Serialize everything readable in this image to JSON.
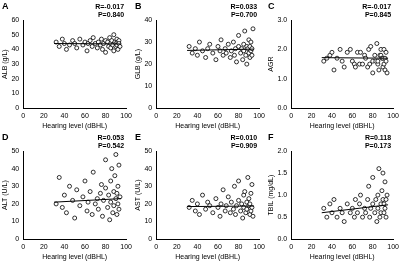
{
  "chart_data": [
    {
      "type": "scatter",
      "title": "A",
      "annotations": [
        "R=-0.017",
        "P=0.840"
      ],
      "x_label": "Hearing level (dBHL)",
      "y_label": "ALB (g/L)",
      "xlim": [
        0,
        100
      ],
      "xticks": [
        0,
        20,
        40,
        60,
        80,
        100
      ],
      "ylim": [
        0,
        60
      ],
      "yticks": [
        0,
        10,
        20,
        30,
        40,
        50,
        60
      ],
      "grid": false,
      "series": [
        {
          "type": "scatter",
          "marker": "circle",
          "color": "#000000",
          "x": [
            32,
            35,
            38,
            40,
            42,
            45,
            48,
            50,
            52,
            55,
            58,
            60,
            62,
            63,
            65,
            67,
            68,
            70,
            72,
            73,
            75,
            76,
            77,
            78,
            80,
            80,
            82,
            83,
            84,
            85,
            85,
            86,
            87,
            88,
            88,
            89,
            90,
            90,
            91,
            91,
            92,
            92,
            93,
            93,
            94
          ],
          "values": [
            45,
            42,
            47,
            44,
            40,
            43,
            46,
            44,
            41,
            47,
            43,
            45,
            39,
            44,
            46,
            42,
            48,
            44,
            41,
            45,
            43,
            47,
            40,
            44,
            46,
            38,
            45,
            42,
            48,
            44,
            41,
            46,
            43,
            50,
            39,
            45,
            44,
            42,
            47,
            43,
            45,
            40,
            46,
            44,
            42
          ]
        },
        {
          "type": "line",
          "line_style": "solid",
          "color": "#000000",
          "x": [
            30,
            95
          ],
          "values": [
            44.0,
            43.7
          ]
        }
      ]
    },
    {
      "type": "scatter",
      "title": "B",
      "annotations": [
        "R=0.033",
        "P=0.700"
      ],
      "x_label": "Hearing level (dBHL)",
      "y_label": "GLB (g/L)",
      "xlim": [
        0,
        100
      ],
      "xticks": [
        0,
        20,
        40,
        60,
        80,
        100
      ],
      "ylim": [
        0,
        40
      ],
      "yticks": [
        0,
        10,
        20,
        30,
        40
      ],
      "grid": false,
      "series": [
        {
          "type": "scatter",
          "marker": "circle",
          "color": "#000000",
          "x": [
            32,
            35,
            38,
            40,
            42,
            45,
            48,
            50,
            52,
            55,
            58,
            60,
            62,
            63,
            65,
            67,
            68,
            70,
            72,
            73,
            75,
            76,
            77,
            78,
            80,
            80,
            82,
            83,
            84,
            85,
            85,
            86,
            87,
            88,
            88,
            89,
            90,
            90,
            91,
            91,
            92,
            92,
            93,
            93,
            94
          ],
          "values": [
            28,
            25,
            27,
            24,
            30,
            26,
            23,
            27,
            29,
            25,
            22,
            28,
            26,
            31,
            24,
            27,
            25,
            29,
            23,
            26,
            30,
            24,
            27,
            21,
            28,
            33,
            25,
            27,
            22,
            29,
            26,
            35,
            24,
            28,
            20,
            27,
            31,
            25,
            23,
            28,
            26,
            30,
            24,
            27,
            36
          ]
        },
        {
          "type": "line",
          "line_style": "solid",
          "color": "#000000",
          "x": [
            30,
            95
          ],
          "values": [
            26.2,
            26.8
          ]
        }
      ]
    },
    {
      "type": "scatter",
      "title": "C",
      "annotations": [
        "R=-0.017",
        "P=0.845"
      ],
      "x_label": "Hearing level (dBHL)",
      "y_label": "AGR",
      "xlim": [
        0,
        100
      ],
      "xticks": [
        0,
        20,
        40,
        60,
        80,
        100
      ],
      "ylim": [
        0,
        3
      ],
      "yticks": [
        {
          "value": 0,
          "label": "0.0"
        },
        {
          "value": 1,
          "label": "1.0"
        },
        {
          "value": 2,
          "label": "2.0"
        },
        {
          "value": 3,
          "label": "3.0"
        }
      ],
      "grid": false,
      "series": [
        {
          "type": "scatter",
          "marker": "circle",
          "color": "#000000",
          "x": [
            32,
            35,
            38,
            40,
            42,
            45,
            48,
            50,
            52,
            55,
            58,
            60,
            62,
            63,
            65,
            67,
            68,
            70,
            72,
            73,
            75,
            76,
            77,
            78,
            80,
            80,
            82,
            83,
            84,
            85,
            85,
            86,
            87,
            88,
            88,
            89,
            90,
            90,
            91,
            91,
            92,
            92,
            93,
            93,
            94
          ],
          "values": [
            1.6,
            1.7,
            1.8,
            1.9,
            1.3,
            1.7,
            2.0,
            1.6,
            1.4,
            1.9,
            2.0,
            1.6,
            1.5,
            1.4,
            1.9,
            1.5,
            1.9,
            1.5,
            1.8,
            1.7,
            1.4,
            2.0,
            1.5,
            2.1,
            1.6,
            1.2,
            1.8,
            1.6,
            2.2,
            1.5,
            1.6,
            1.3,
            1.8,
            1.8,
            2.0,
            1.7,
            1.4,
            1.7,
            2.0,
            1.5,
            1.7,
            1.3,
            1.9,
            1.6,
            1.2
          ]
        },
        {
          "type": "line",
          "line_style": "solid",
          "color": "#000000",
          "x": [
            30,
            95
          ],
          "values": [
            1.72,
            1.7
          ]
        }
      ]
    },
    {
      "type": "scatter",
      "title": "D",
      "annotations": [
        "R=0.053",
        "P=0.542"
      ],
      "x_label": "Hearing level (dBHL)",
      "y_label": "ALT (U/L)",
      "xlim": [
        0,
        100
      ],
      "xticks": [
        0,
        20,
        40,
        60,
        80,
        100
      ],
      "ylim": [
        0,
        50
      ],
      "yticks": [
        0,
        10,
        20,
        30,
        40,
        50
      ],
      "grid": false,
      "series": [
        {
          "type": "scatter",
          "marker": "circle",
          "color": "#000000",
          "x": [
            32,
            35,
            38,
            40,
            42,
            45,
            48,
            50,
            52,
            55,
            58,
            60,
            62,
            63,
            65,
            67,
            68,
            70,
            72,
            73,
            75,
            76,
            77,
            78,
            80,
            80,
            82,
            83,
            84,
            85,
            85,
            86,
            87,
            88,
            88,
            89,
            90,
            90,
            91,
            91,
            92,
            92,
            93,
            93,
            94
          ],
          "values": [
            20,
            35,
            18,
            25,
            15,
            30,
            22,
            12,
            28,
            19,
            24,
            33,
            16,
            21,
            27,
            14,
            38,
            20,
            23,
            17,
            26,
            31,
            13,
            22,
            29,
            45,
            18,
            25,
            11,
            33,
            21,
            40,
            15,
            27,
            19,
            36,
            23,
            48,
            14,
            26,
            20,
            30,
            17,
            42,
            24
          ]
        },
        {
          "type": "line",
          "line_style": "solid",
          "color": "#000000",
          "x": [
            30,
            95
          ],
          "values": [
            21,
            23
          ]
        }
      ]
    },
    {
      "type": "scatter",
      "title": "E",
      "annotations": [
        "R=0.010",
        "P=0.909"
      ],
      "x_label": "Hearing level (dBHL)",
      "y_label": "AST (U/L)",
      "xlim": [
        0,
        100
      ],
      "xticks": [
        0,
        20,
        40,
        60,
        80,
        100
      ],
      "ylim": [
        0,
        50
      ],
      "yticks": [
        0,
        10,
        20,
        30,
        40,
        50
      ],
      "grid": false,
      "series": [
        {
          "type": "scatter",
          "marker": "circle",
          "color": "#000000",
          "x": [
            32,
            35,
            38,
            40,
            42,
            45,
            48,
            50,
            52,
            55,
            58,
            60,
            62,
            63,
            65,
            67,
            68,
            70,
            72,
            73,
            75,
            76,
            77,
            78,
            80,
            80,
            82,
            83,
            84,
            85,
            85,
            86,
            87,
            88,
            88,
            89,
            90,
            90,
            91,
            91,
            92,
            92,
            93,
            93,
            94
          ],
          "values": [
            18,
            22,
            16,
            20,
            14,
            25,
            17,
            21,
            19,
            15,
            23,
            18,
            13,
            20,
            28,
            16,
            19,
            24,
            15,
            21,
            17,
            30,
            14,
            19,
            22,
            33,
            16,
            20,
            12,
            25,
            18,
            27,
            15,
            21,
            17,
            35,
            19,
            23,
            14,
            20,
            16,
            26,
            18,
            31,
            13
          ]
        },
        {
          "type": "line",
          "line_style": "solid",
          "color": "#000000",
          "x": [
            30,
            95
          ],
          "values": [
            18.5,
            18.8
          ]
        }
      ]
    },
    {
      "type": "scatter",
      "title": "F",
      "annotations": [
        "R=0.118",
        "P=0.173"
      ],
      "x_label": "Hearing level (dBHL)",
      "y_label": "TBIL (mg/dL)",
      "xlim": [
        0,
        100
      ],
      "xticks": [
        0,
        20,
        40,
        60,
        80,
        100
      ],
      "ylim": [
        0,
        2
      ],
      "yticks": [
        {
          "value": 0,
          "label": "0.0"
        },
        0.5,
        {
          "value": 1,
          "label": "1.0"
        },
        1.5,
        {
          "value": 2,
          "label": "2.0"
        }
      ],
      "grid": false,
      "series": [
        {
          "type": "scatter",
          "marker": "circle",
          "color": "#000000",
          "x": [
            32,
            35,
            38,
            40,
            42,
            45,
            48,
            50,
            52,
            55,
            58,
            60,
            62,
            63,
            65,
            67,
            68,
            70,
            72,
            73,
            75,
            76,
            77,
            78,
            80,
            80,
            82,
            83,
            84,
            85,
            85,
            86,
            87,
            88,
            88,
            89,
            90,
            90,
            91,
            91,
            92,
            92,
            93,
            93,
            94
          ],
          "values": [
            0.7,
            0.5,
            0.8,
            0.6,
            0.9,
            0.5,
            0.7,
            0.6,
            0.4,
            0.8,
            0.6,
            0.7,
            0.5,
            0.9,
            0.6,
            0.8,
            1.0,
            0.5,
            0.7,
            0.6,
            0.9,
            1.2,
            0.5,
            0.7,
            0.8,
            1.4,
            0.6,
            0.9,
            0.4,
            1.0,
            0.7,
            1.6,
            0.5,
            0.8,
            0.6,
            1.1,
            0.9,
            1.5,
            0.6,
            0.8,
            0.7,
            1.3,
            0.5,
            0.9,
            1.0
          ]
        },
        {
          "type": "line",
          "line_style": "solid",
          "color": "#000000",
          "x": [
            30,
            95
          ],
          "values": [
            0.6,
            0.78
          ]
        }
      ]
    }
  ]
}
